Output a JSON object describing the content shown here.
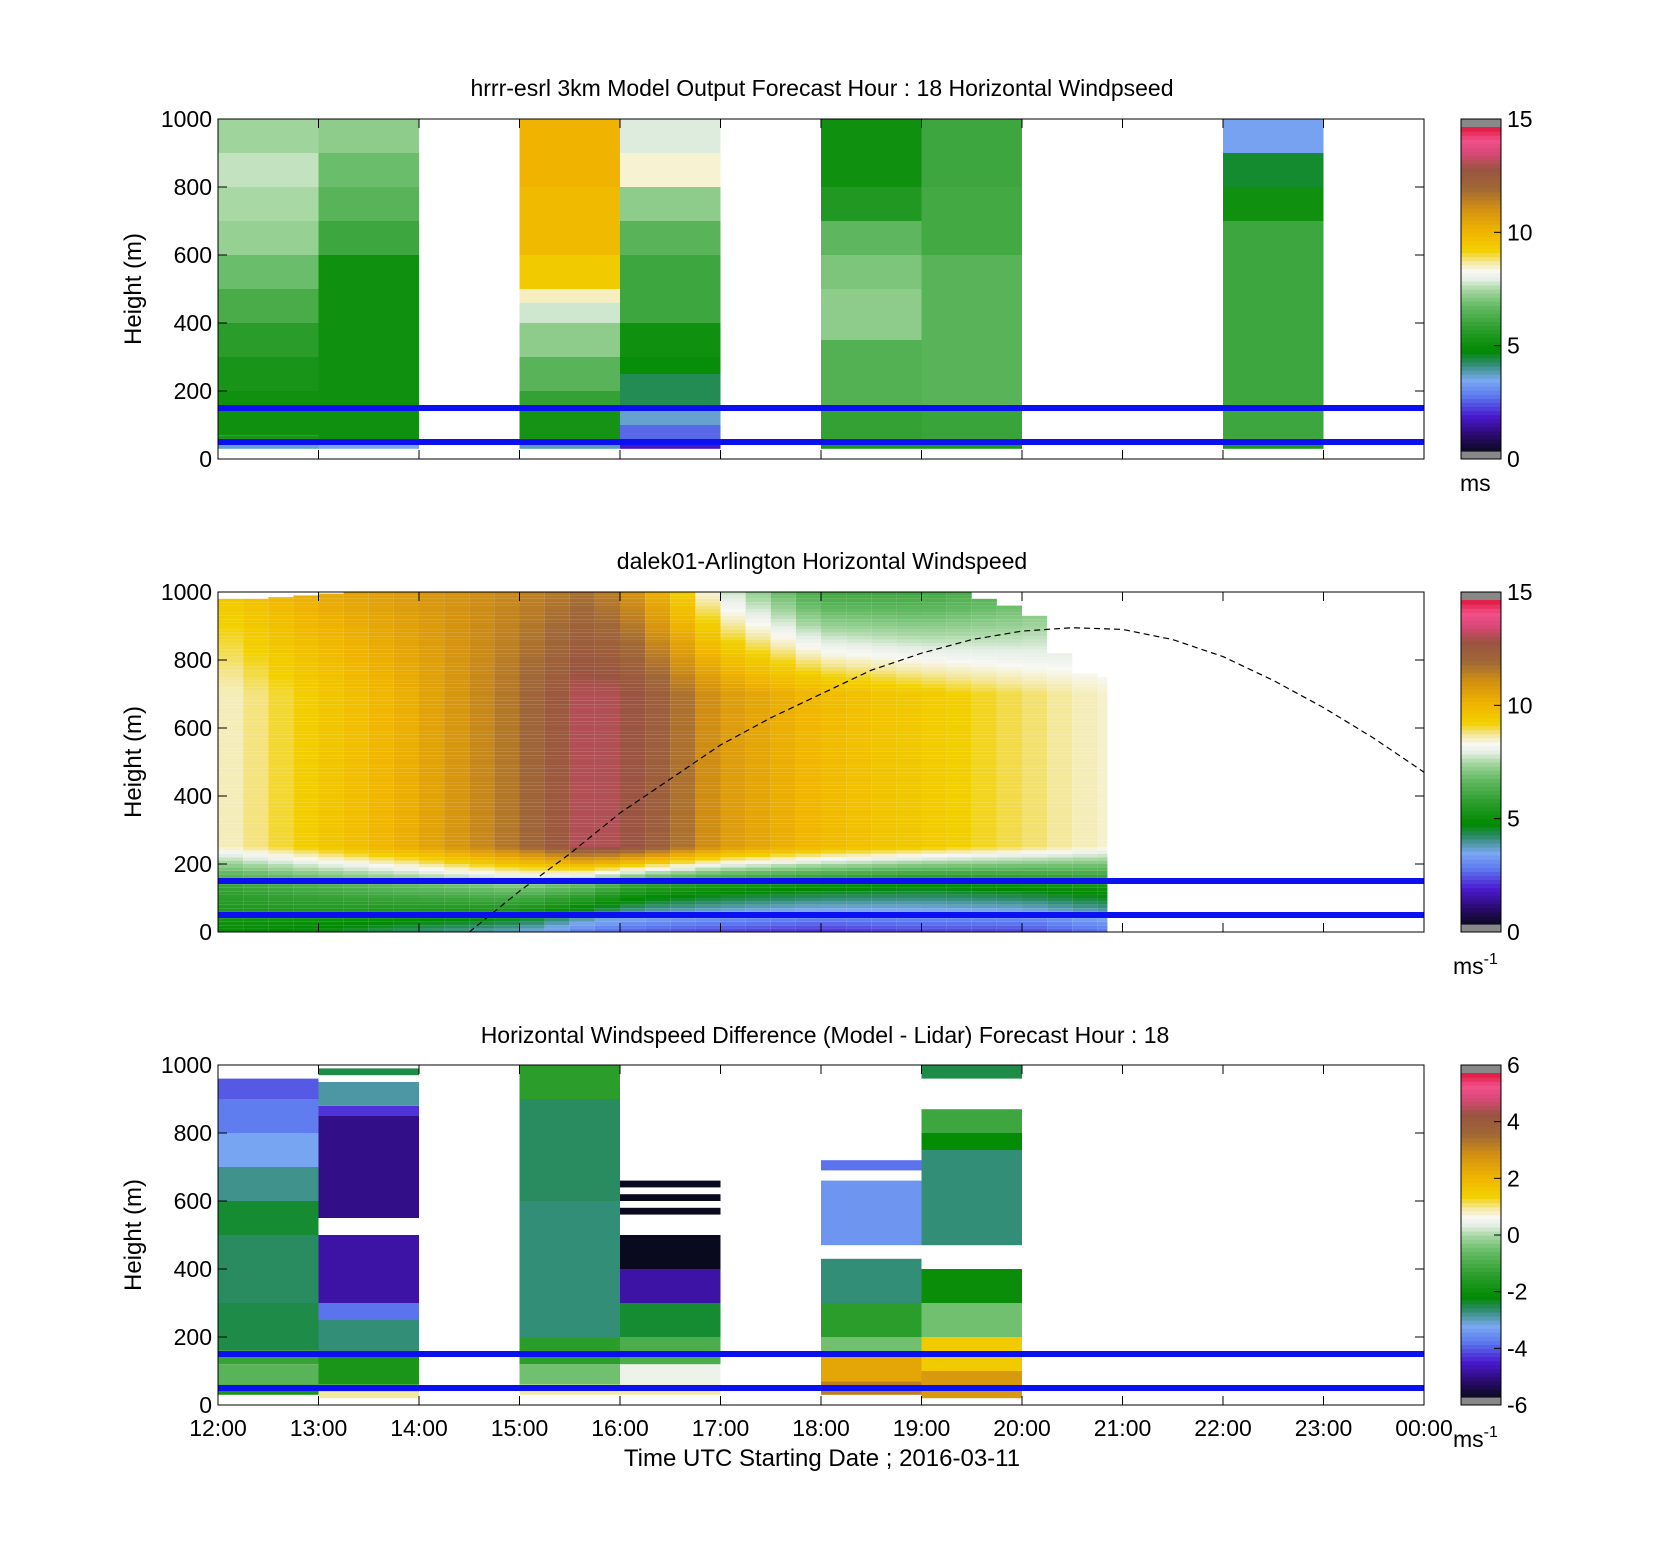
{
  "chart_data": [
    {
      "type": "heatmap",
      "title": "hrrr-esrl 3km Model Output   Forecast Hour : 18 Horizontal Windpseed",
      "ylabel": "Height (m)",
      "xlabel": "",
      "ylim": [
        0,
        1000
      ],
      "yticks": [
        "0",
        "200",
        "400",
        "600",
        "800",
        "1000"
      ],
      "colorbar": {
        "min": 0,
        "max": 15,
        "ticks": [
          "0",
          "5",
          "10",
          "15"
        ],
        "unit": "ms",
        "unit_exp": "",
        "scheme": "wind"
      },
      "reference_lines_m": [
        150,
        50
      ],
      "curve": null,
      "columns": [
        {
          "t0": 0,
          "t1": 1,
          "layers": [
            [
              30,
              50,
              3.5
            ],
            [
              50,
              70,
              5.2
            ],
            [
              70,
              200,
              5
            ],
            [
              200,
              300,
              5.2
            ],
            [
              300,
              400,
              5.6
            ],
            [
              400,
              500,
              6.2
            ],
            [
              500,
              600,
              6.8
            ],
            [
              600,
              700,
              7.3
            ],
            [
              700,
              800,
              7.5
            ],
            [
              800,
              900,
              7.7
            ],
            [
              900,
              1000,
              7.4
            ]
          ]
        },
        {
          "t0": 1,
          "t1": 2,
          "layers": [
            [
              30,
              50,
              3.3
            ],
            [
              50,
              600,
              5
            ],
            [
              600,
              700,
              6
            ],
            [
              700,
              800,
              6.5
            ],
            [
              800,
              900,
              6.8
            ],
            [
              900,
              1000,
              7.2
            ]
          ]
        },
        {
          "t0": 3,
          "t1": 4,
          "layers": [
            [
              30,
              50,
              3.6
            ],
            [
              50,
              150,
              5.1
            ],
            [
              150,
              200,
              5.8
            ],
            [
              200,
              300,
              6.5
            ],
            [
              300,
              400,
              7.2
            ],
            [
              400,
              460,
              7.8
            ],
            [
              460,
              500,
              8.6
            ],
            [
              500,
              600,
              9.5
            ],
            [
              600,
              800,
              10
            ],
            [
              800,
              1000,
              10.2
            ]
          ]
        },
        {
          "t0": 4,
          "t1": 5,
          "layers": [
            [
              30,
              50,
              1.5
            ],
            [
              50,
              100,
              2.4
            ],
            [
              100,
              150,
              3.5
            ],
            [
              150,
              250,
              4.2
            ],
            [
              250,
              300,
              4.8
            ],
            [
              300,
              400,
              5
            ],
            [
              400,
              600,
              6
            ],
            [
              600,
              700,
              6.5
            ],
            [
              700,
              800,
              7.2
            ],
            [
              800,
              900,
              8.5
            ],
            [
              900,
              1000,
              7.9
            ]
          ]
        },
        {
          "t0": 6,
          "t1": 7,
          "layers": [
            [
              30,
              50,
              5.3
            ],
            [
              50,
              150,
              5.8
            ],
            [
              150,
              350,
              6.4
            ],
            [
              350,
              500,
              7.2
            ],
            [
              500,
              600,
              7
            ],
            [
              600,
              700,
              6.6
            ],
            [
              700,
              800,
              5.4
            ],
            [
              800,
              1000,
              5
            ]
          ]
        },
        {
          "t0": 7,
          "t1": 8,
          "layers": [
            [
              30,
              50,
              5.3
            ],
            [
              50,
              150,
              5.9
            ],
            [
              150,
              600,
              6.5
            ],
            [
              600,
              800,
              6.1
            ],
            [
              800,
              1000,
              6
            ]
          ]
        },
        {
          "t0": 10,
          "t1": 11,
          "layers": [
            [
              30,
              50,
              5.4
            ],
            [
              50,
              700,
              6
            ],
            [
              700,
              800,
              5
            ],
            [
              800,
              900,
              4.4
            ],
            [
              900,
              1000,
              3.2
            ]
          ]
        }
      ]
    },
    {
      "type": "heatmap",
      "title": "dalek01-Arlington  Horizontal Windspeed",
      "ylabel": "Height (m)",
      "xlabel": "",
      "ylim": [
        0,
        1000
      ],
      "yticks": [
        "0",
        "200",
        "400",
        "600",
        "800",
        "1000"
      ],
      "colorbar": {
        "min": 0,
        "max": 15,
        "ticks": [
          "0",
          "5",
          "10",
          "15"
        ],
        "unit": "ms",
        "unit_exp": "-1",
        "scheme": "wind"
      },
      "reference_lines_m": [
        150,
        50
      ],
      "curve": {
        "style": "dashed",
        "x": [
          0,
          2.2,
          2.5,
          3,
          3.5,
          4,
          4.5,
          5,
          5.5,
          6,
          6.5,
          7,
          7.5,
          8,
          8.5,
          9,
          9.5,
          10,
          10.5,
          11,
          11.5,
          12
        ],
        "y": [
          null,
          null,
          0,
          120,
          230,
          350,
          450,
          550,
          630,
          700,
          770,
          820,
          860,
          885,
          895,
          890,
          860,
          810,
          740,
          660,
          570,
          470
        ]
      },
      "profile_data": {
        "start_hour": 0,
        "end_hour": 8.85,
        "column_width_h": 0.25,
        "top_m": [
          980,
          980,
          985,
          990,
          995,
          1000,
          1000,
          1000,
          1000,
          1000,
          1000,
          1000,
          1000,
          1000,
          1000,
          1000,
          1000,
          1000,
          1000,
          1000,
          1000,
          1000,
          1000,
          1000,
          1000,
          1000,
          1000,
          1000,
          1000,
          1000,
          980,
          960,
          930,
          820,
          760,
          750
        ],
        "anchors": [
          {
            "t": 0.0,
            "hi": 9.5,
            "mid": 8.5,
            "lo": 6.0,
            "surf": 4.8
          },
          {
            "t": 1.0,
            "hi": 10.5,
            "mid": 9.5,
            "lo": 6.5,
            "surf": 4.5
          },
          {
            "t": 2.0,
            "hi": 11.0,
            "mid": 10.5,
            "lo": 7.0,
            "surf": 4.0
          },
          {
            "t": 3.0,
            "hi": 11.5,
            "mid": 12.0,
            "lo": 7.5,
            "surf": 3.5
          },
          {
            "t": 3.7,
            "hi": 12.0,
            "mid": 13.5,
            "lo": 7.0,
            "surf": 2.5
          },
          {
            "t": 4.2,
            "hi": 11.0,
            "mid": 13.0,
            "lo": 6.0,
            "surf": 2.2
          },
          {
            "t": 5.0,
            "hi": 8.0,
            "mid": 11.0,
            "lo": 5.5,
            "surf": 2.0
          },
          {
            "t": 6.0,
            "hi": 6.0,
            "mid": 10.0,
            "lo": 5.2,
            "surf": 1.8
          },
          {
            "t": 7.0,
            "hi": 6.0,
            "mid": 9.5,
            "lo": 5.0,
            "surf": 2.0
          },
          {
            "t": 8.0,
            "hi": 6.5,
            "mid": 9.0,
            "lo": 5.2,
            "surf": 2.0
          },
          {
            "t": 8.85,
            "hi": 7.5,
            "mid": 8.5,
            "lo": 5.5,
            "surf": 2.5
          }
        ]
      }
    },
    {
      "type": "heatmap",
      "title": "Horizontal Windspeed Difference (Model - Lidar) Forecast Hour : 18",
      "ylabel": "Height (m)",
      "xlabel": "Time UTC  Starting Date ; 2016-03-11",
      "ylim": [
        0,
        1000
      ],
      "yticks": [
        "0",
        "200",
        "400",
        "600",
        "800",
        "1000"
      ],
      "colorbar": {
        "min": -6,
        "max": 6,
        "ticks": [
          "-6",
          "-4",
          "-2",
          "0",
          "2",
          "4",
          "6"
        ],
        "unit": "ms",
        "unit_exp": "-1",
        "scheme": "diff"
      },
      "reference_lines_m": [
        150,
        50
      ],
      "curve": null,
      "columns": [
        {
          "t0": 0,
          "t1": 1,
          "layers": [
            [
              30,
              60,
              -1.8
            ],
            [
              60,
              120,
              -0.8
            ],
            [
              120,
              160,
              -1.3
            ],
            [
              160,
              300,
              -2.6
            ],
            [
              300,
              500,
              -2.7
            ],
            [
              500,
              600,
              -2.5
            ],
            [
              600,
              700,
              -2.9
            ],
            [
              700,
              800,
              -3.4
            ],
            [
              800,
              900,
              -3.9
            ],
            [
              900,
              960,
              -4.2
            ]
          ]
        },
        {
          "t0": 1,
          "t1": 2,
          "layers": [
            [
              20,
              40,
              1.0
            ],
            [
              40,
              60,
              -0.4
            ],
            [
              60,
              150,
              -1.8
            ],
            [
              150,
              250,
              -2.8
            ],
            [
              250,
              300,
              -4.0
            ],
            [
              300,
              500,
              -5.0
            ],
            [
              550,
              850,
              -5.2
            ],
            [
              850,
              880,
              -4.5
            ],
            [
              880,
              950,
              -3.0
            ],
            [
              970,
              990,
              -2.6
            ]
          ]
        },
        {
          "t0": 3,
          "t1": 4,
          "layers": [
            [
              30,
              60,
              1.0
            ],
            [
              60,
              120,
              -0.5
            ],
            [
              120,
              200,
              -1.5
            ],
            [
              200,
              600,
              -2.8
            ],
            [
              600,
              900,
              -2.7
            ],
            [
              900,
              1000,
              -1.5
            ]
          ]
        },
        {
          "t0": 4,
          "t1": 5,
          "layers": [
            [
              30,
              60,
              1.0
            ],
            [
              60,
              120,
              0.5
            ],
            [
              120,
              200,
              -1.0
            ],
            [
              200,
              300,
              -2.5
            ],
            [
              300,
              400,
              -5.0
            ],
            [
              400,
              500,
              -6.2
            ],
            [
              560,
              580,
              -6.2
            ],
            [
              600,
              620,
              -6.2
            ],
            [
              640,
              660,
              -6.2
            ]
          ]
        },
        {
          "t0": 6,
          "t1": 7,
          "layers": [
            [
              30,
              70,
              3.3
            ],
            [
              70,
              150,
              2.5
            ],
            [
              150,
              200,
              -0.5
            ],
            [
              200,
              300,
              -1.5
            ],
            [
              300,
              430,
              -2.8
            ],
            [
              470,
              660,
              -3.6
            ],
            [
              690,
              720,
              -4.0
            ]
          ]
        },
        {
          "t0": 7,
          "t1": 8,
          "layers": [
            [
              20,
              100,
              2.8
            ],
            [
              100,
              200,
              1.6
            ],
            [
              200,
              300,
              -0.5
            ],
            [
              300,
              400,
              -2.1
            ],
            [
              470,
              750,
              -2.8
            ],
            [
              750,
              800,
              -2.2
            ],
            [
              800,
              870,
              -1.2
            ],
            [
              960,
              1000,
              -2.6
            ]
          ]
        }
      ]
    }
  ],
  "x_axis": {
    "ticks": [
      "12:00",
      "13:00",
      "14:00",
      "15:00",
      "16:00",
      "17:00",
      "18:00",
      "19:00",
      "20:00",
      "21:00",
      "22:00",
      "23:00",
      "00:00"
    ]
  }
}
